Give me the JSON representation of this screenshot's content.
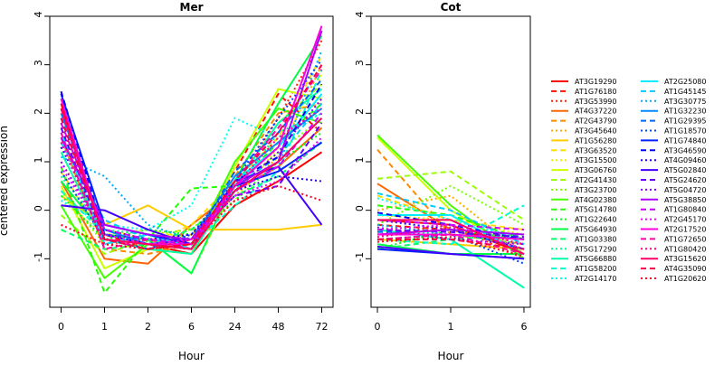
{
  "ylabel": "centered expression",
  "xlabel": "Hour",
  "panels": [
    {
      "title": "Mer",
      "x_ticks": [
        "0",
        "1",
        "2",
        "6",
        "24",
        "48",
        "72"
      ],
      "y_ticks": [
        "-1",
        "0",
        "1",
        "2",
        "3",
        "4"
      ]
    },
    {
      "title": "Cot",
      "x_ticks": [
        "0",
        "1",
        "6"
      ],
      "y_ticks": [
        "-1",
        "0",
        "1",
        "2",
        "3",
        "4"
      ]
    }
  ],
  "legend": [
    {
      "name": "AT3G19290",
      "color": "#ff0000",
      "dash": "solid"
    },
    {
      "name": "AT1G76180",
      "color": "#ff1100",
      "dash": "dashed"
    },
    {
      "name": "AT3G53990",
      "color": "#ff2200",
      "dash": "dotted"
    },
    {
      "name": "AT4G37220",
      "color": "#ff6600",
      "dash": "solid"
    },
    {
      "name": "AT2G43790",
      "color": "#ff8800",
      "dash": "dashed"
    },
    {
      "name": "AT3G45640",
      "color": "#ffaa00",
      "dash": "dotted"
    },
    {
      "name": "AT1G56280",
      "color": "#ffcc00",
      "dash": "solid"
    },
    {
      "name": "AT3G63520",
      "color": "#ffdd00",
      "dash": "dashed"
    },
    {
      "name": "AT3G15500",
      "color": "#eeee00",
      "dash": "dotted"
    },
    {
      "name": "AT3G06760",
      "color": "#ccff00",
      "dash": "solid"
    },
    {
      "name": "AT2G41430",
      "color": "#99ff00",
      "dash": "dashed"
    },
    {
      "name": "AT3G23700",
      "color": "#77ff00",
      "dash": "dotted"
    },
    {
      "name": "AT4G02380",
      "color": "#44ff00",
      "dash": "solid"
    },
    {
      "name": "AT5G14780",
      "color": "#22ff00",
      "dash": "dashed"
    },
    {
      "name": "AT1G22640",
      "color": "#00ff11",
      "dash": "dotted"
    },
    {
      "name": "AT5G64930",
      "color": "#00ff44",
      "dash": "solid"
    },
    {
      "name": "AT1G03380",
      "color": "#00ff66",
      "dash": "dashed"
    },
    {
      "name": "AT5G17290",
      "color": "#00ff88",
      "dash": "dotted"
    },
    {
      "name": "AT5G66880",
      "color": "#00ffaa",
      "dash": "solid"
    },
    {
      "name": "AT1G58200",
      "color": "#00ffcc",
      "dash": "dashed"
    },
    {
      "name": "AT2G14170",
      "color": "#00ffee",
      "dash": "dotted"
    },
    {
      "name": "AT2G25080",
      "color": "#00eeff",
      "dash": "solid"
    },
    {
      "name": "AT1G45145",
      "color": "#00ccff",
      "dash": "dashed"
    },
    {
      "name": "AT3G30775",
      "color": "#00aaff",
      "dash": "dotted"
    },
    {
      "name": "AT1G32230",
      "color": "#0088ff",
      "dash": "solid"
    },
    {
      "name": "AT1G29395",
      "color": "#0066ff",
      "dash": "dashed"
    },
    {
      "name": "AT1G18570",
      "color": "#0044ff",
      "dash": "dotted"
    },
    {
      "name": "AT1G74840",
      "color": "#0022ff",
      "dash": "solid"
    },
    {
      "name": "AT3G46590",
      "color": "#0000ff",
      "dash": "dashed"
    },
    {
      "name": "AT4G09460",
      "color": "#2200ff",
      "dash": "dotted"
    },
    {
      "name": "AT5G02840",
      "color": "#4400ff",
      "dash": "solid"
    },
    {
      "name": "AT5G24620",
      "color": "#6600ff",
      "dash": "dashed"
    },
    {
      "name": "AT5G04720",
      "color": "#8800ff",
      "dash": "dotted"
    },
    {
      "name": "AT5G38850",
      "color": "#aa00ff",
      "dash": "solid"
    },
    {
      "name": "AT1G80840",
      "color": "#cc00ff",
      "dash": "dashed"
    },
    {
      "name": "AT2G45170",
      "color": "#ee00ff",
      "dash": "dotted"
    },
    {
      "name": "AT2G17520",
      "color": "#ff00dd",
      "dash": "solid"
    },
    {
      "name": "AT1G72650",
      "color": "#ff00aa",
      "dash": "dashed"
    },
    {
      "name": "AT1G80420",
      "color": "#ff0088",
      "dash": "dotted"
    },
    {
      "name": "AT3G15620",
      "color": "#ff0066",
      "dash": "solid"
    },
    {
      "name": "AT4G35090",
      "color": "#ff0044",
      "dash": "dashed"
    },
    {
      "name": "AT1G20620",
      "color": "#ff0022",
      "dash": "dotted"
    }
  ],
  "chart_data": [
    {
      "type": "line",
      "title": "Mer",
      "xlabel": "Hour",
      "ylabel": "centered expression",
      "x": [
        0,
        1,
        2,
        6,
        24,
        48,
        72
      ],
      "ylim": [
        -2,
        4
      ],
      "grid": false,
      "legend_position": "right",
      "series": [
        {
          "name": "AT3G19290",
          "values": [
            2.2,
            -0.6,
            -0.7,
            -0.9,
            0.1,
            0.6,
            1.2
          ]
        },
        {
          "name": "AT1G76180",
          "values": [
            2.1,
            -0.5,
            -0.8,
            -0.6,
            0.8,
            2.4,
            1.6
          ]
        },
        {
          "name": "AT3G53990",
          "values": [
            1.8,
            -0.7,
            -0.6,
            -0.8,
            0.5,
            1.9,
            3.5
          ]
        },
        {
          "name": "AT4G37220",
          "values": [
            0.6,
            -1.0,
            -1.1,
            -0.3,
            0.4,
            0.9,
            1.7
          ]
        },
        {
          "name": "AT2G43790",
          "values": [
            1.5,
            -0.8,
            -0.9,
            -0.7,
            0.7,
            2.0,
            2.2
          ]
        },
        {
          "name": "AT3G45640",
          "values": [
            1.0,
            -0.4,
            -0.6,
            -0.5,
            0.3,
            1.1,
            3.0
          ]
        },
        {
          "name": "AT1G56280",
          "values": [
            0.3,
            -0.3,
            0.1,
            -0.4,
            -0.4,
            -0.4,
            -0.3
          ]
        },
        {
          "name": "AT3G63520",
          "values": [
            0.8,
            -0.6,
            -0.7,
            -0.3,
            0.6,
            1.5,
            3.2
          ]
        },
        {
          "name": "AT3G15500",
          "values": [
            0.2,
            -0.5,
            -0.4,
            -0.6,
            0.2,
            1.3,
            2.8
          ]
        },
        {
          "name": "AT3G06760",
          "values": [
            0.5,
            -1.2,
            -0.8,
            -0.9,
            0.9,
            2.5,
            2.3
          ]
        },
        {
          "name": "AT2G41430",
          "values": [
            -0.1,
            -0.9,
            -0.6,
            -1.3,
            0.5,
            1.8,
            2.6
          ]
        },
        {
          "name": "AT3G23700",
          "values": [
            0.4,
            -0.7,
            -0.5,
            -0.4,
            0.4,
            1.2,
            1.9
          ]
        },
        {
          "name": "AT4G02380",
          "values": [
            0.1,
            -1.4,
            -0.7,
            -0.8,
            1.0,
            2.1,
            1.8
          ]
        },
        {
          "name": "AT5G14780",
          "values": [
            0.9,
            -1.7,
            -0.6,
            0.45,
            0.5,
            1.4,
            2.2
          ]
        },
        {
          "name": "AT1G22640",
          "values": [
            0.3,
            -0.6,
            -0.4,
            -0.5,
            0.2,
            1.0,
            1.6
          ]
        },
        {
          "name": "AT5G64930",
          "values": [
            0.6,
            -0.5,
            -0.6,
            -1.3,
            0.6,
            2.2,
            3.6
          ]
        },
        {
          "name": "AT1G03380",
          "values": [
            -0.4,
            -0.8,
            -0.7,
            -0.4,
            0.3,
            0.7,
            1.4
          ]
        },
        {
          "name": "AT5G17290",
          "values": [
            0.7,
            -0.4,
            -0.5,
            -0.6,
            0.4,
            1.6,
            2.0
          ]
        },
        {
          "name": "AT5G66880",
          "values": [
            1.2,
            -0.6,
            -0.8,
            -0.9,
            0.5,
            1.8,
            2.5
          ]
        },
        {
          "name": "AT1G58200",
          "values": [
            0.4,
            -0.5,
            -0.6,
            -0.7,
            0.1,
            0.8,
            2.9
          ]
        },
        {
          "name": "AT2G14170",
          "values": [
            0.2,
            -0.3,
            -0.4,
            0.1,
            1.9,
            1.5,
            2.0
          ]
        },
        {
          "name": "AT2G25080",
          "values": [
            1.6,
            -0.7,
            -0.5,
            -0.8,
            0.6,
            1.3,
            2.4
          ]
        },
        {
          "name": "AT1G45145",
          "values": [
            1.4,
            -0.2,
            -0.6,
            -0.7,
            0.5,
            1.1,
            2.2
          ]
        },
        {
          "name": "AT3G30775",
          "values": [
            1.1,
            0.7,
            -0.3,
            -0.6,
            0.4,
            0.9,
            3.3
          ]
        },
        {
          "name": "AT1G32230",
          "values": [
            2.0,
            -0.4,
            -0.7,
            -0.6,
            0.7,
            1.4,
            2.1
          ]
        },
        {
          "name": "AT1G29395",
          "values": [
            1.9,
            -0.5,
            -0.6,
            -0.7,
            0.8,
            1.6,
            2.7
          ]
        },
        {
          "name": "AT1G18570",
          "values": [
            0.8,
            -0.6,
            -0.8,
            -0.5,
            0.6,
            1.9,
            3.1
          ]
        },
        {
          "name": "AT1G74840",
          "values": [
            2.4,
            -0.3,
            -0.5,
            -0.7,
            0.5,
            0.8,
            1.4
          ]
        },
        {
          "name": "AT3G46590",
          "values": [
            2.45,
            -0.5,
            -0.7,
            -0.8,
            0.6,
            1.1,
            2.6
          ]
        },
        {
          "name": "AT4G09460",
          "values": [
            1.3,
            -0.4,
            -0.6,
            -0.5,
            0.4,
            0.7,
            0.6
          ]
        },
        {
          "name": "AT5G02840",
          "values": [
            0.1,
            0.0,
            -0.4,
            -0.7,
            0.6,
            0.9,
            -0.3
          ]
        },
        {
          "name": "AT5G24620",
          "values": [
            1.7,
            -0.6,
            -0.7,
            -0.6,
            0.3,
            0.5,
            1.8
          ]
        },
        {
          "name": "AT5G04720",
          "values": [
            1.0,
            -0.5,
            -0.6,
            -0.6,
            0.4,
            1.2,
            2.3
          ]
        },
        {
          "name": "AT5G38850",
          "values": [
            1.5,
            -0.3,
            -0.5,
            -0.6,
            0.5,
            1.0,
            3.7
          ]
        },
        {
          "name": "AT1G80840",
          "values": [
            1.8,
            -0.4,
            -0.6,
            -0.7,
            0.4,
            0.9,
            2.0
          ]
        },
        {
          "name": "AT2G45170",
          "values": [
            0.9,
            -0.5,
            -0.7,
            -0.6,
            0.3,
            0.6,
            1.5
          ]
        },
        {
          "name": "AT2G17520",
          "values": [
            2.3,
            -0.6,
            -0.7,
            -0.7,
            0.5,
            1.3,
            3.8
          ]
        },
        {
          "name": "AT1G72650",
          "values": [
            1.6,
            -0.8,
            -0.6,
            -0.8,
            0.6,
            1.7,
            2.9
          ]
        },
        {
          "name": "AT1G80420",
          "values": [
            1.4,
            -0.7,
            -0.8,
            -0.6,
            0.5,
            1.5,
            2.1
          ]
        },
        {
          "name": "AT3G15620",
          "values": [
            2.1,
            -0.6,
            -0.7,
            -0.8,
            0.4,
            1.0,
            1.9
          ]
        },
        {
          "name": "AT4G35090",
          "values": [
            1.9,
            -0.6,
            -0.8,
            -0.7,
            0.6,
            1.6,
            3.0
          ]
        },
        {
          "name": "AT1G20620",
          "values": [
            -0.3,
            -0.7,
            -0.8,
            -0.7,
            0.2,
            0.5,
            0.2
          ]
        }
      ]
    },
    {
      "type": "line",
      "title": "Cot",
      "xlabel": "Hour",
      "ylabel": "",
      "x": [
        0,
        1,
        6
      ],
      "ylim": [
        -2,
        4
      ],
      "grid": false,
      "legend_position": "right",
      "series": [
        {
          "name": "AT3G19290",
          "values": [
            -0.2,
            -0.3,
            -0.9
          ]
        },
        {
          "name": "AT1G76180",
          "values": [
            -0.3,
            -0.4,
            -0.6
          ]
        },
        {
          "name": "AT3G53990",
          "values": [
            -0.5,
            -0.3,
            -1.0
          ]
        },
        {
          "name": "AT4G37220",
          "values": [
            0.55,
            -0.4,
            -0.8
          ]
        },
        {
          "name": "AT2G43790",
          "values": [
            1.25,
            -0.5,
            -0.7
          ]
        },
        {
          "name": "AT3G45640",
          "values": [
            0.0,
            0.3,
            -0.9
          ]
        },
        {
          "name": "AT1G56280",
          "values": [
            -0.6,
            -0.7,
            -0.8
          ]
        },
        {
          "name": "AT3G63520",
          "values": [
            0.3,
            -0.2,
            -0.4
          ]
        },
        {
          "name": "AT3G15500",
          "values": [
            -0.1,
            -0.2,
            -0.5
          ]
        },
        {
          "name": "AT3G06760",
          "values": [
            1.5,
            0.0,
            -0.9
          ]
        },
        {
          "name": "AT2G41430",
          "values": [
            0.65,
            0.8,
            -0.2
          ]
        },
        {
          "name": "AT3G23700",
          "values": [
            -0.3,
            0.5,
            -0.3
          ]
        },
        {
          "name": "AT4G02380",
          "values": [
            1.55,
            0.1,
            -1.0
          ]
        },
        {
          "name": "AT5G14780",
          "values": [
            0.1,
            -0.1,
            -0.6
          ]
        },
        {
          "name": "AT1G22640",
          "values": [
            -0.8,
            -0.4,
            -0.6
          ]
        },
        {
          "name": "AT5G64930",
          "values": [
            -0.7,
            -0.9,
            -0.9
          ]
        },
        {
          "name": "AT1G03380",
          "values": [
            -0.8,
            -0.6,
            -0.5
          ]
        },
        {
          "name": "AT5G17290",
          "values": [
            -0.4,
            -0.5,
            -0.7
          ]
        },
        {
          "name": "AT5G66880",
          "values": [
            -0.4,
            -0.6,
            -1.6
          ]
        },
        {
          "name": "AT1G58200",
          "values": [
            -0.6,
            -0.7,
            0.1
          ]
        },
        {
          "name": "AT2G14170",
          "values": [
            0.25,
            -0.2,
            -0.6
          ]
        },
        {
          "name": "AT2G25080",
          "values": [
            -0.1,
            -0.1,
            -0.9
          ]
        },
        {
          "name": "AT1G45145",
          "values": [
            0.35,
            0.0,
            -0.7
          ]
        },
        {
          "name": "AT3G30775",
          "values": [
            -0.3,
            -0.5,
            -0.6
          ]
        },
        {
          "name": "AT1G32230",
          "values": [
            -0.5,
            -0.5,
            -0.6
          ]
        },
        {
          "name": "AT1G29395",
          "values": [
            -0.45,
            -0.4,
            -0.8
          ]
        },
        {
          "name": "AT1G18570",
          "values": [
            -0.6,
            -0.5,
            -1.1
          ]
        },
        {
          "name": "AT1G74840",
          "values": [
            -0.8,
            -0.9,
            -1.0
          ]
        },
        {
          "name": "AT3G46590",
          "values": [
            -0.05,
            -0.3,
            -0.6
          ]
        },
        {
          "name": "AT4G09460",
          "values": [
            -0.2,
            -0.4,
            -0.8
          ]
        },
        {
          "name": "AT5G02840",
          "values": [
            -0.75,
            -0.9,
            -1.0
          ]
        },
        {
          "name": "AT5G24620",
          "values": [
            -0.4,
            -0.45,
            -0.55
          ]
        },
        {
          "name": "AT5G04720",
          "values": [
            -0.35,
            -0.6,
            -0.7
          ]
        },
        {
          "name": "AT5G38850",
          "values": [
            -0.5,
            -0.4,
            -0.5
          ]
        },
        {
          "name": "AT1G80840",
          "values": [
            -0.2,
            -0.3,
            -0.4
          ]
        },
        {
          "name": "AT2G45170",
          "values": [
            -0.4,
            -0.3,
            -0.8
          ]
        },
        {
          "name": "AT2G17520",
          "values": [
            -0.5,
            -0.5,
            -0.6
          ]
        },
        {
          "name": "AT1G72650",
          "values": [
            -0.6,
            -0.5,
            -0.9
          ]
        },
        {
          "name": "AT1G80420",
          "values": [
            -0.55,
            -0.35,
            -0.7
          ]
        },
        {
          "name": "AT3G15620",
          "values": [
            -0.2,
            -0.2,
            -0.9
          ]
        },
        {
          "name": "AT4G35090",
          "values": [
            -0.6,
            -0.6,
            -0.8
          ]
        },
        {
          "name": "AT1G20620",
          "values": [
            -0.65,
            -0.55,
            -0.95
          ]
        }
      ]
    }
  ]
}
